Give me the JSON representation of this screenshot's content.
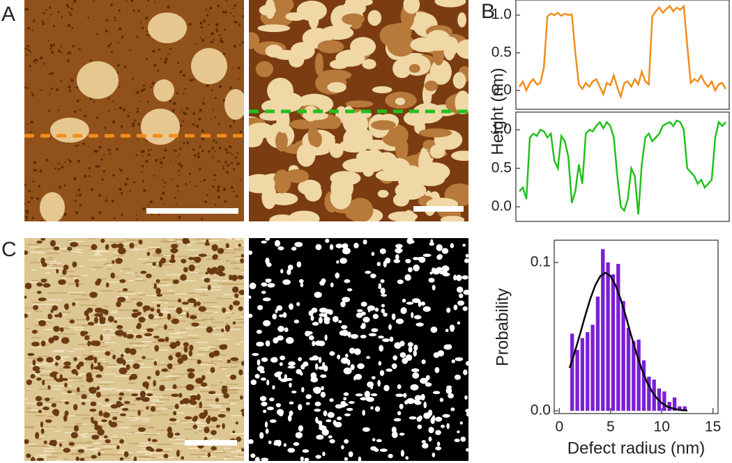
{
  "panel_labels": [
    "A",
    "B",
    "C"
  ],
  "chart_data": [
    {
      "type": "line",
      "ylabel": "Height (nm)",
      "color": "#f28c1c",
      "values": [
        0.05,
        0.12,
        0.0,
        0.1,
        0.15,
        0.08,
        0.1,
        0.3,
        0.98,
        1.02,
        1.0,
        1.03,
        0.99,
        1.02,
        1.0,
        1.01,
        0.5,
        0.08,
        0.02,
        0.1,
        0.05,
        0.12,
        0.15,
        0.05,
        -0.05,
        0.1,
        0.07,
        0.2,
        0.04,
        -0.08,
        0.1,
        0.12,
        0.05,
        0.15,
        0.08,
        0.25,
        0.12,
        0.08,
        0.98,
        1.05,
        1.1,
        1.03,
        1.08,
        1.12,
        1.05,
        1.1,
        1.07,
        1.12,
        0.6,
        0.1,
        0.15,
        0.12,
        0.2,
        0.1,
        0.05,
        0.12,
        0.0,
        0.08,
        0.1,
        0.02
      ],
      "ylim": [
        -0.25,
        1.2
      ],
      "yticks": [
        {
          "value": 0,
          "label": "0.0"
        },
        0.5,
        {
          "value": 1,
          "label": "1.0"
        }
      ]
    },
    {
      "type": "line",
      "color": "#22c01c",
      "values": [
        0.2,
        0.25,
        0.1,
        0.9,
        0.95,
        0.92,
        1.0,
        0.98,
        0.9,
        0.95,
        0.6,
        0.5,
        0.92,
        0.85,
        0.65,
        0.05,
        0.2,
        0.55,
        0.3,
        0.95,
        1.0,
        0.98,
        1.05,
        1.1,
        1.02,
        1.1,
        1.05,
        0.9,
        0.4,
        0.0,
        -0.05,
        0.1,
        0.5,
        0.4,
        -0.1,
        0.55,
        0.9,
        0.95,
        0.85,
        0.9,
        0.95,
        1.05,
        1.08,
        1.1,
        1.05,
        1.12,
        1.1,
        1.0,
        0.5,
        0.45,
        0.4,
        0.3,
        0.35,
        0.25,
        0.3,
        0.35,
        0.9,
        1.1,
        1.05,
        1.1
      ],
      "ylim": [
        -0.19,
        1.23
      ],
      "yticks": [
        {
          "value": 0,
          "label": "0.0"
        },
        0.5,
        {
          "value": 1,
          "label": "1.0"
        }
      ]
    },
    {
      "type": "histogram",
      "xlabel": "Defect radius (nm)",
      "ylabel": "Probability",
      "color": "#7a1fd6",
      "bins": [
        1.0,
        1.5,
        2.0,
        2.5,
        3.0,
        3.5,
        4.0,
        4.5,
        5.0,
        5.5,
        6.0,
        6.5,
        7.0,
        7.5,
        8.0,
        8.5,
        9.0,
        9.5,
        10.0,
        10.5,
        11.0,
        11.5,
        12.0,
        12.5
      ],
      "values": [
        0.052,
        0.041,
        0.049,
        0.053,
        0.058,
        0.077,
        0.109,
        0.1,
        0.092,
        0.099,
        0.074,
        0.056,
        0.047,
        0.048,
        0.034,
        0.023,
        0.021,
        0.015,
        0.013,
        0.006,
        0.009,
        0.003,
        0.003
      ],
      "fit": {
        "color": "#000000",
        "x": [
          1,
          1.5,
          2,
          2.5,
          3,
          3.5,
          4,
          4.5,
          5,
          5.5,
          6,
          6.5,
          7,
          7.5,
          8,
          8.5,
          9,
          9.5,
          10,
          10.5,
          11,
          11.5,
          12,
          12.5
        ],
        "y": [
          0.0289,
          0.0394,
          0.0512,
          0.0635,
          0.075,
          0.0845,
          0.0908,
          0.093,
          0.0908,
          0.0845,
          0.075,
          0.0635,
          0.0512,
          0.0394,
          0.0289,
          0.0202,
          0.0135,
          0.0086,
          0.0052,
          0.003,
          0.0017,
          0.0009,
          0.0004,
          0.0002
        ]
      },
      "xlim": [
        -0.5,
        15.5
      ],
      "xticks": [
        0,
        5,
        10,
        15
      ],
      "ylim": [
        0,
        0.115
      ],
      "yticks": [
        {
          "value": 0,
          "label": "0.0"
        },
        0.1
      ]
    }
  ]
}
